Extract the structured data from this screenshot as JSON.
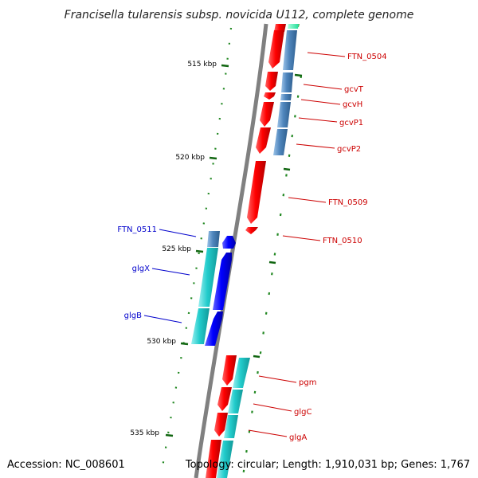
{
  "title": "Francisella tularensis subsp. novicida U112, complete genome",
  "footer": {
    "accession": "Accession: NC_008601",
    "topology": "Topology: circular; Length: 1,910,031 bp; Genes: 1,767"
  },
  "scale_labels": [
    "515 kbp",
    "520 kbp",
    "525 kbp",
    "530 kbp",
    "535 kbp"
  ],
  "genes": [
    {
      "label": "FTN_0504",
      "strand": "reverse",
      "color": "#cc0000"
    },
    {
      "label": "gcvT",
      "strand": "reverse",
      "color": "#cc0000"
    },
    {
      "label": "gcvH",
      "strand": "reverse",
      "color": "#cc0000"
    },
    {
      "label": "gcvP1",
      "strand": "reverse",
      "color": "#cc0000"
    },
    {
      "label": "gcvP2",
      "strand": "reverse",
      "color": "#cc0000"
    },
    {
      "label": "FTN_0509",
      "strand": "reverse",
      "color": "#cc0000"
    },
    {
      "label": "FTN_0510",
      "strand": "reverse",
      "color": "#cc0000"
    },
    {
      "label": "FTN_0511",
      "strand": "forward",
      "color": "#0000cc"
    },
    {
      "label": "glgX",
      "strand": "forward",
      "color": "#0000cc"
    },
    {
      "label": "glgB",
      "strand": "forward",
      "color": "#0000cc"
    },
    {
      "label": "pgm",
      "strand": "reverse",
      "color": "#cc0000"
    },
    {
      "label": "glgC",
      "strand": "reverse",
      "color": "#cc0000"
    },
    {
      "label": "glgA",
      "strand": "reverse",
      "color": "#cc0000"
    }
  ],
  "colors": {
    "backbone": "#808080",
    "reverse_gene": "#ff0000",
    "forward_gene": "#0000ff",
    "cds_steelblue": "#4f86bd",
    "cds_cyan": "#22cccc",
    "tick": "#116611"
  }
}
